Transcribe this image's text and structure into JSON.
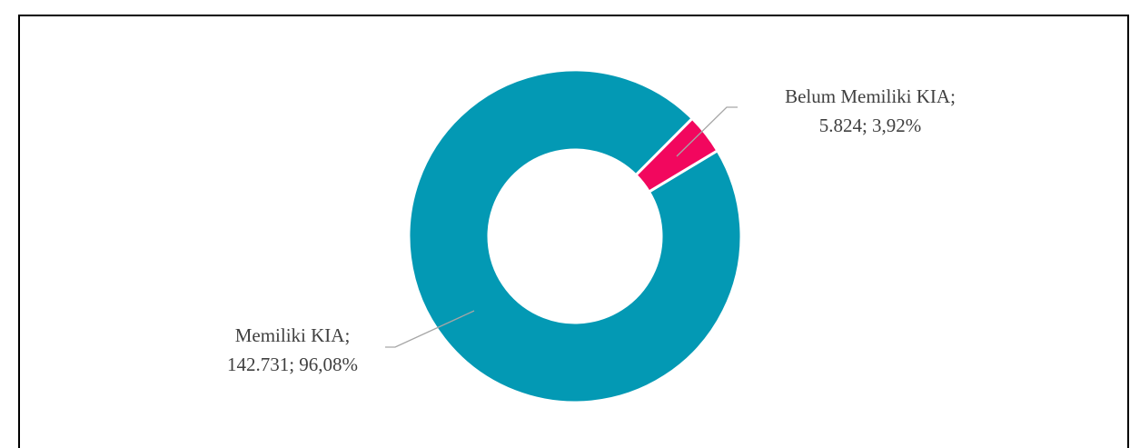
{
  "chart_data": {
    "type": "donut",
    "values": [
      142731,
      5824
    ],
    "value_labels": [
      [
        "Memiliki KIA;",
        "142.731; 96,08%"
      ],
      [
        "Belum Memiliki KIA;",
        "5.824; 3,92%"
      ]
    ],
    "colors": [
      "#0399b4",
      "#f2075e"
    ]
  }
}
